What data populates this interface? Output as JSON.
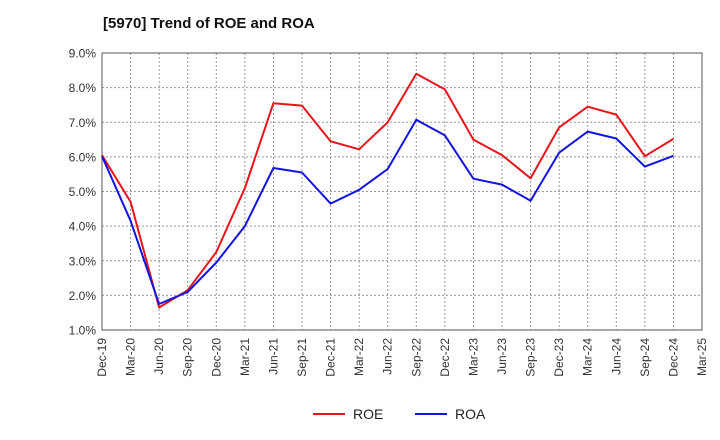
{
  "chart_data": {
    "type": "line",
    "title": "[5970]  Trend of ROE and ROA",
    "xlabel": "",
    "ylabel": "",
    "ylim": [
      1.0,
      9.0
    ],
    "yticks": [
      "1.0%",
      "2.0%",
      "3.0%",
      "4.0%",
      "5.0%",
      "6.0%",
      "7.0%",
      "8.0%",
      "9.0%"
    ],
    "categories": [
      "Dec-19",
      "Mar-20",
      "Jun-20",
      "Sep-20",
      "Dec-20",
      "Mar-21",
      "Jun-21",
      "Sep-21",
      "Dec-21",
      "Mar-22",
      "Jun-22",
      "Sep-22",
      "Dec-22",
      "Mar-23",
      "Jun-23",
      "Sep-23",
      "Dec-23",
      "Mar-24",
      "Jun-24",
      "Sep-24",
      "Dec-24",
      "Mar-25"
    ],
    "grid": true,
    "legend_position": "bottom",
    "series": [
      {
        "name": "ROE",
        "color": "#e8151b",
        "values": [
          6.05,
          4.7,
          1.65,
          2.15,
          3.25,
          5.1,
          7.55,
          7.48,
          6.45,
          6.22,
          7.0,
          8.4,
          7.95,
          6.5,
          6.05,
          5.38,
          6.85,
          7.45,
          7.22,
          6.02,
          6.52,
          null
        ]
      },
      {
        "name": "ROA",
        "color": "#1414e0",
        "values": [
          6.02,
          4.15,
          1.75,
          2.1,
          2.95,
          4.0,
          5.68,
          5.55,
          4.65,
          5.05,
          5.65,
          7.07,
          6.62,
          5.37,
          5.2,
          4.73,
          6.12,
          6.73,
          6.53,
          5.72,
          6.03,
          null
        ]
      }
    ]
  }
}
